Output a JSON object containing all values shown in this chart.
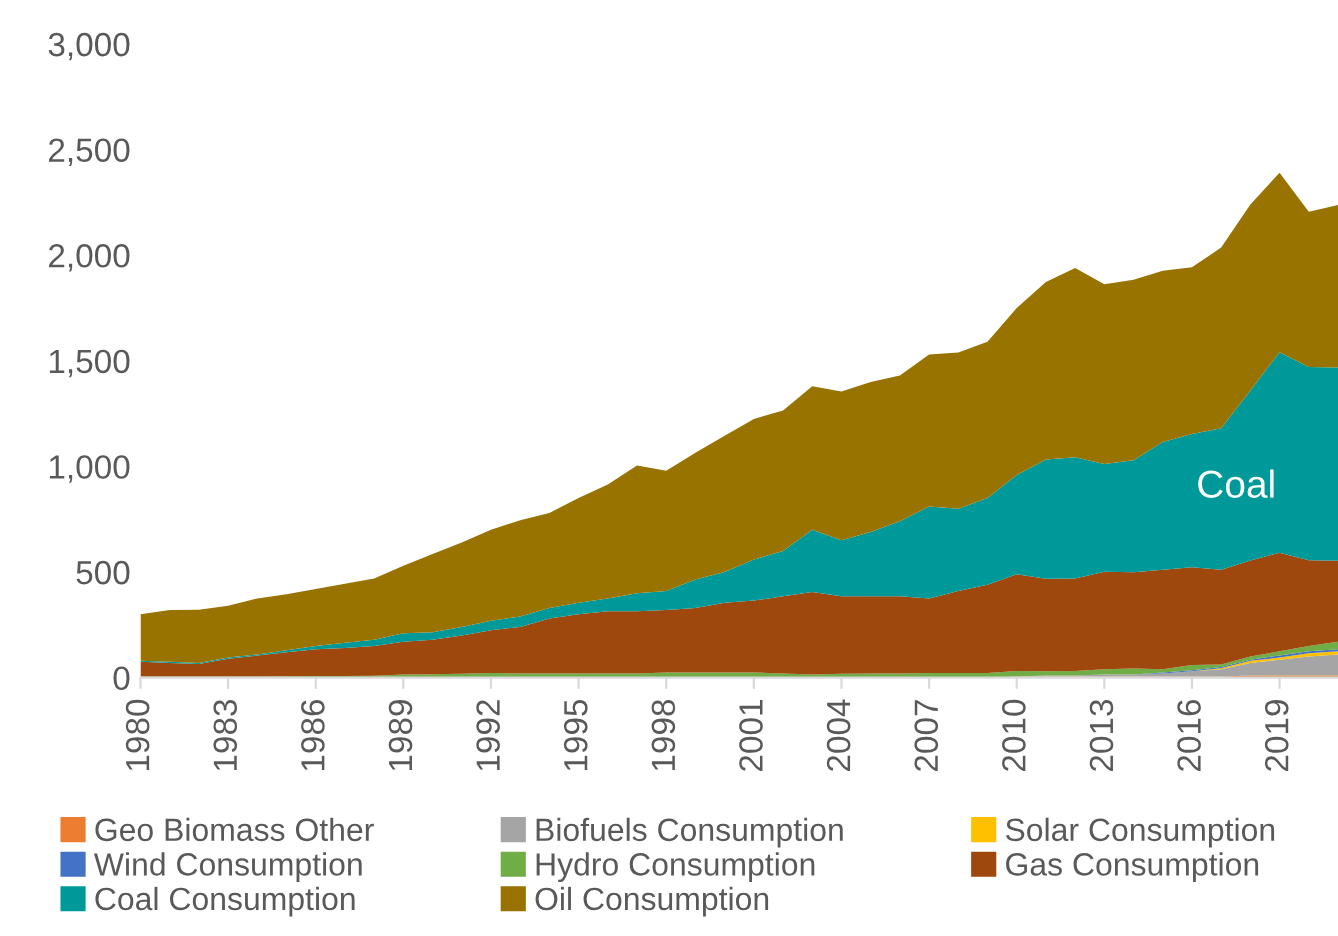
{
  "chart_data": {
    "type": "area",
    "stacked": true,
    "x": [
      1980,
      1981,
      1982,
      1983,
      1984,
      1985,
      1986,
      1987,
      1988,
      1989,
      1990,
      1991,
      1992,
      1993,
      1994,
      1995,
      1996,
      1997,
      1998,
      1999,
      2000,
      2001,
      2002,
      2003,
      2004,
      2005,
      2006,
      2007,
      2008,
      2009,
      2010,
      2011,
      2012,
      2013,
      2014,
      2015,
      2016,
      2017,
      2018,
      2019,
      2020,
      2021
    ],
    "xlim": [
      1980,
      2021
    ],
    "xticks": [
      {
        "value": 1980,
        "label": "1980"
      },
      {
        "value": 1983,
        "label": "1983"
      },
      {
        "value": 1986,
        "label": "1986"
      },
      {
        "value": 1989,
        "label": "1989"
      },
      {
        "value": 1992,
        "label": "1992"
      },
      {
        "value": 1995,
        "label": "1995"
      },
      {
        "value": 1998,
        "label": "1998"
      },
      {
        "value": 2001,
        "label": "2001"
      },
      {
        "value": 2004,
        "label": "2004"
      },
      {
        "value": 2007,
        "label": "2007"
      },
      {
        "value": 2010,
        "label": "2010"
      },
      {
        "value": 2013,
        "label": "2013"
      },
      {
        "value": 2016,
        "label": "2016"
      },
      {
        "value": 2019,
        "label": "2019"
      }
    ],
    "ylim": [
      0,
      3000
    ],
    "yticks": [
      {
        "value": 0,
        "label": "0"
      },
      {
        "value": 500,
        "label": "500"
      },
      {
        "value": 1000,
        "label": "1,000"
      },
      {
        "value": 1500,
        "label": "1,500"
      },
      {
        "value": 2000,
        "label": "2,000"
      },
      {
        "value": 2500,
        "label": "2,500"
      },
      {
        "value": 3000,
        "label": "3,000"
      }
    ],
    "grid": false,
    "legend": "bottom",
    "annotations": [
      "Coal"
    ],
    "series": [
      {
        "name": "Geo Biomass Other",
        "color": "#ed7d31",
        "values": [
          0,
          0,
          0,
          0,
          0,
          0,
          0,
          0,
          0,
          0,
          0,
          0,
          0,
          0,
          0,
          0,
          0,
          0,
          0,
          0,
          0,
          0,
          0,
          0,
          0,
          0,
          0,
          0,
          0,
          0,
          5,
          5,
          5,
          5,
          5,
          5,
          5,
          5,
          10,
          10,
          10,
          10
        ]
      },
      {
        "name": "Biofuels Consumption",
        "color": "#a5a5a5",
        "values": [
          0,
          0,
          0,
          0,
          0,
          0,
          0,
          0,
          0,
          0,
          0,
          0,
          0,
          0,
          0,
          0,
          0,
          0,
          0,
          0,
          0,
          0,
          0,
          0,
          0,
          0,
          0,
          0,
          0,
          0,
          0,
          5,
          5,
          10,
          10,
          15,
          25,
          35,
          60,
          75,
          90,
          100
        ]
      },
      {
        "name": "Solar Consumption",
        "color": "#ffc000",
        "values": [
          0,
          0,
          0,
          0,
          0,
          0,
          0,
          0,
          0,
          0,
          0,
          0,
          0,
          0,
          0,
          0,
          0,
          0,
          0,
          0,
          0,
          0,
          0,
          0,
          0,
          0,
          0,
          0,
          0,
          0,
          0,
          0,
          0,
          0,
          0,
          0,
          0,
          5,
          10,
          10,
          15,
          15
        ]
      },
      {
        "name": "Wind Consumption",
        "color": "#4472c4",
        "values": [
          0,
          0,
          0,
          0,
          0,
          0,
          0,
          0,
          0,
          0,
          0,
          0,
          0,
          0,
          0,
          0,
          0,
          0,
          0,
          0,
          0,
          0,
          0,
          0,
          0,
          0,
          0,
          0,
          0,
          0,
          0,
          0,
          0,
          0,
          0,
          5,
          5,
          5,
          5,
          10,
          10,
          10
        ]
      },
      {
        "name": "Hydro Consumption",
        "color": "#70ad47",
        "values": [
          5,
          5,
          5,
          6,
          6,
          7,
          8,
          8,
          9,
          15,
          16,
          18,
          22,
          20,
          20,
          20,
          20,
          20,
          25,
          25,
          25,
          25,
          20,
          15,
          18,
          20,
          20,
          22,
          22,
          22,
          27,
          20,
          22,
          25,
          28,
          15,
          25,
          12,
          15,
          20,
          25,
          35
        ]
      },
      {
        "name": "Gas Consumption",
        "color": "#9e480e",
        "values": [
          70,
          65,
          60,
          84,
          99,
          113,
          127,
          132,
          141,
          155,
          164,
          182,
          203,
          220,
          260,
          280,
          295,
          295,
          295,
          305,
          330,
          340,
          365,
          390,
          367,
          365,
          365,
          353,
          388,
          418,
          458,
          438,
          437,
          462,
          456,
          471,
          463,
          449,
          455,
          466,
          406,
          383
        ]
      },
      {
        "name": "Coal Consumption",
        "color": "#009999",
        "values": [
          5,
          5,
          5,
          5,
          5,
          10,
          15,
          25,
          30,
          40,
          35,
          40,
          45,
          50,
          50,
          55,
          60,
          85,
          90,
          135,
          145,
          195,
          215,
          295,
          265,
          305,
          355,
          435,
          390,
          410,
          470,
          565,
          575,
          510,
          530,
          605,
          630,
          670,
          805,
          950,
          915,
          915
        ]
      },
      {
        "name": "Oil Consumption",
        "color": "#997300",
        "values": [
          220,
          245,
          252,
          245,
          265,
          265,
          270,
          280,
          290,
          320,
          370,
          400,
          430,
          455,
          450,
          495,
          540,
          605,
          570,
          600,
          645,
          665,
          665,
          680,
          705,
          710,
          690,
          720,
          740,
          740,
          790,
          840,
          895,
          850,
          855,
          810,
          790,
          855,
          880,
          850,
          735,
          770
        ]
      }
    ]
  }
}
